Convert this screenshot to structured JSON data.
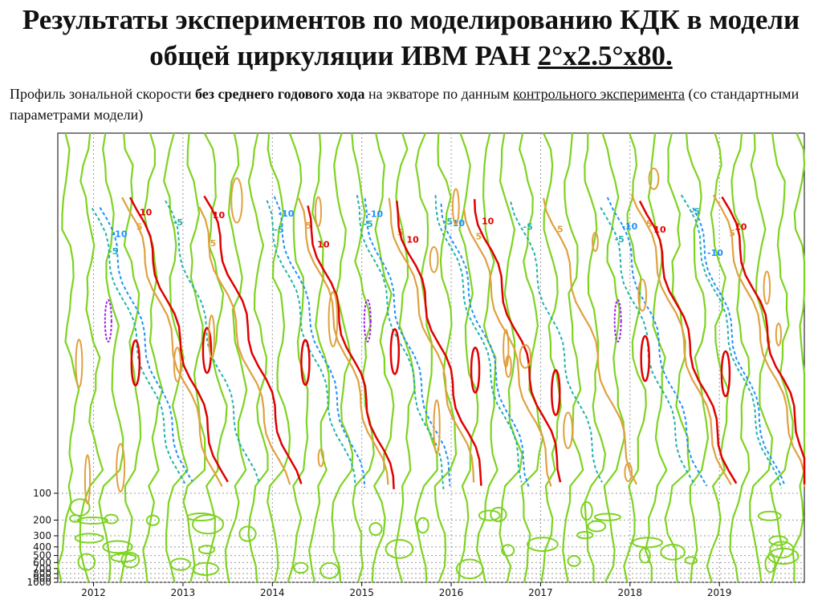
{
  "title": {
    "prefix": "Результаты экспериментов по моделированию КДК в модели общей циркуляции ИВМ РАН ",
    "grid": "2°x2.5°x80."
  },
  "subtitle": {
    "part1": "Профиль зональной скорости ",
    "bold": "без среднего годового хода",
    "part2": " на экваторе по данным ",
    "underlined": "контрольного эксперимента",
    "part3": " (со стандартными параметрами модели)"
  },
  "chart_data": {
    "type": "contour",
    "x": [
      "2012",
      "2013",
      "2014",
      "2015",
      "2016",
      "2017",
      "2018",
      "2019"
    ],
    "y_ticks": [
      "100",
      "200",
      "300",
      "400",
      "500",
      "600",
      "700",
      "800",
      "900",
      "1000"
    ],
    "contour_levels": [
      -10,
      -5,
      0,
      5,
      10
    ],
    "level_colors": {
      "-15": "#a020f0",
      "-10": "#1e90ff",
      "-5": "#20b2aa",
      "0": "#7ed321",
      "5": "#e0a040",
      "10": "#e00000"
    },
    "grid": true
  }
}
